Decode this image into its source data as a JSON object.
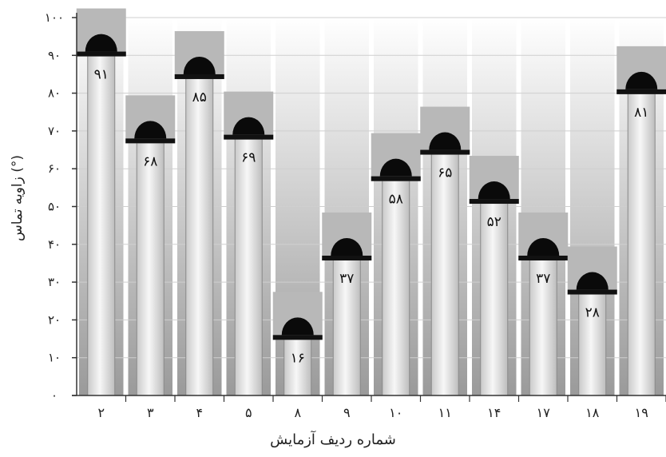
{
  "chart_data": {
    "type": "bar",
    "title": "",
    "xlabel": "شماره ردیف آزمایش",
    "ylabel": "زاویه تماس (°)",
    "ylim": [
      0,
      100
    ],
    "yticks": [
      "۰",
      "۱۰",
      "۲۰",
      "۳۰",
      "۴۰",
      "۵۰",
      "۶۰",
      "۷۰",
      "۸۰",
      "۹۰",
      "۱۰۰"
    ],
    "categories": [
      "۲",
      "۳",
      "۴",
      "۵",
      "۸",
      "۹",
      "۱۰",
      "۱۱",
      "۱۴",
      "۱۷",
      "۱۸",
      "۱۹"
    ],
    "values": [
      91,
      68,
      85,
      69,
      16,
      37,
      58,
      65,
      52,
      37,
      28,
      81
    ],
    "value_labels": [
      "۹۱",
      "۶۸",
      "۸۵",
      "۶۹",
      "۱۶",
      "۳۷",
      "۵۸",
      "۶۵",
      "۵۲",
      "۳۷",
      "۲۸",
      "۸۱"
    ],
    "grid": true,
    "legend": "none"
  }
}
